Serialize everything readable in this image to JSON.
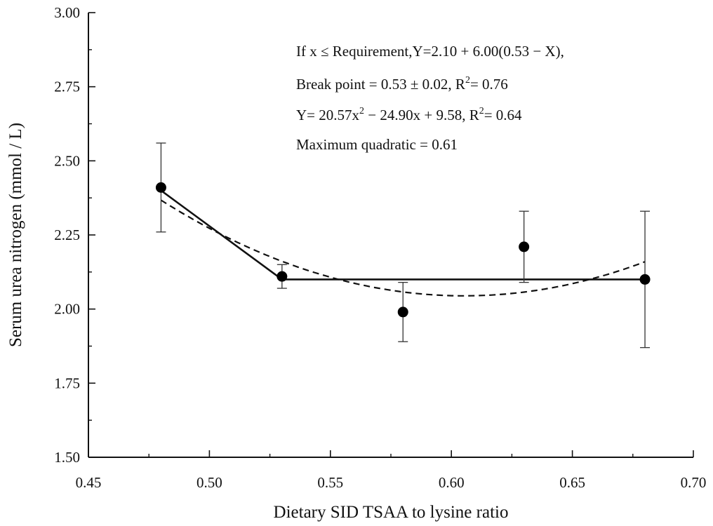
{
  "chart_data": {
    "type": "scatter",
    "xlabel": "Dietary SID TSAA to lysine ratio",
    "ylabel": "Serum urea nitrogen (mmol / L)",
    "xlim": [
      0.45,
      0.7
    ],
    "ylim": [
      1.5,
      3.0
    ],
    "xticks": [
      "0.45",
      "0.50",
      "0.55",
      "0.60",
      "0.65",
      "0.70"
    ],
    "yticks": [
      "1.50",
      "1.75",
      "2.00",
      "2.25",
      "2.50",
      "2.75",
      "3.00"
    ],
    "grid": false,
    "points": [
      {
        "x": 0.48,
        "y": 2.41,
        "err_low": 2.26,
        "err_high": 2.56
      },
      {
        "x": 0.53,
        "y": 2.11,
        "err_low": 2.07,
        "err_high": 2.15
      },
      {
        "x": 0.58,
        "y": 1.99,
        "err_low": 1.89,
        "err_high": 2.09
      },
      {
        "x": 0.63,
        "y": 2.21,
        "err_low": 2.09,
        "err_high": 2.33
      },
      {
        "x": 0.68,
        "y": 2.1,
        "err_low": 1.87,
        "err_high": 2.33
      }
    ],
    "broken_line": {
      "style": "solid",
      "intercept": 2.1,
      "slope": 6.0,
      "breakpoint": 0.53,
      "x_range": [
        0.48,
        0.68
      ]
    },
    "quadratic": {
      "style": "dashed",
      "a": 20.57,
      "b": -24.9,
      "c": 9.58,
      "x_range": [
        0.48,
        0.68
      ]
    },
    "annotations": [
      {
        "parts": [
          {
            "t": "If x ≤ Requirement,Y=2.10 + 6.00(0.53 − X),"
          }
        ]
      },
      {
        "parts": [
          {
            "t": "Break point = 0.53 ± 0.02, R"
          },
          {
            "t": "2",
            "sup": true
          },
          {
            "t": "= 0.76"
          }
        ]
      },
      {
        "parts": [
          {
            "t": "Y= 20.57x"
          },
          {
            "t": "2",
            "sup": true
          },
          {
            "t": " − 24.90x + 9.58, R"
          },
          {
            "t": "2",
            "sup": true
          },
          {
            "t": "= 0.64"
          }
        ]
      },
      {
        "parts": [
          {
            "t": "Maximum quadratic = 0.61"
          }
        ]
      }
    ]
  }
}
